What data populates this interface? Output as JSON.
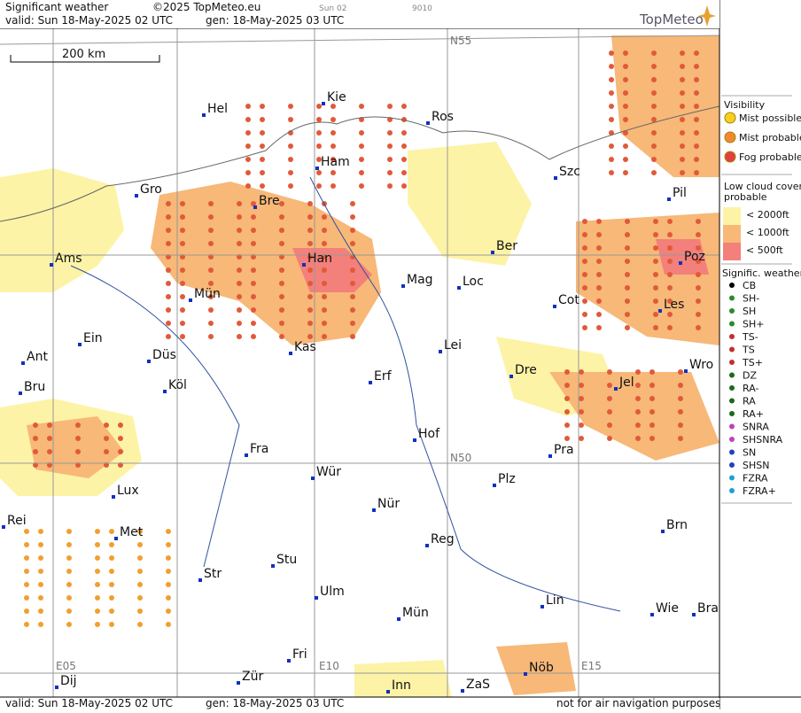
{
  "header": {
    "title": "Significant weather",
    "copyright": "©2025 TopMeteo.eu",
    "run": "Sun 02",
    "code": "9010",
    "valid": "valid:  Sun  18-May-2025  02 UTC",
    "gen": "gen: 18-May-2025 03 UTC",
    "logo": "TopMeteo"
  },
  "scale": "200 km",
  "grid_labels": [
    "N55",
    "N50",
    "E05",
    "E10",
    "E15"
  ],
  "cities": [
    "Hel",
    "Kie",
    "Ros",
    "Ham",
    "Szc",
    "Gro",
    "Bre",
    "Pil",
    "Ber",
    "Ams",
    "Han",
    "Poz",
    "Mag",
    "Loc",
    "Mün",
    "Cot",
    "Les",
    "Ein",
    "Kas",
    "Lei",
    "Ant",
    "Düs",
    "Wro",
    "Dre",
    "Erf",
    "Jel",
    "Bru",
    "Köl",
    "Hof",
    "Fra",
    "Pra",
    "Wür",
    "Plz",
    "Lux",
    "Nür",
    "Rei",
    "Brn",
    "Met",
    "Reg",
    "Stu",
    "Str",
    "Ulm",
    "Lin",
    "Wie",
    "Bra",
    "Mün",
    "Fri",
    "Nöb",
    "Dij",
    "Zür",
    "Inn",
    "ZaS"
  ],
  "legend": {
    "visibility": "Visibility",
    "visibility_items": [
      "Mist possible",
      "Mist probable",
      "Fog probable"
    ],
    "cloud_title": [
      "Low cloud cover",
      "probable"
    ],
    "cloud_items": [
      "< 2000ft",
      "< 1000ft",
      "<   500ft"
    ],
    "weather_title": "Signific. weather",
    "weather_items": [
      "CB",
      "SH-",
      "SH",
      "SH+",
      "TS-",
      "TS",
      "TS+",
      "DZ",
      "RA-",
      "RA",
      "RA+",
      "SNRA",
      "SHSNRA",
      "SN",
      "SHSN",
      "FZRA",
      "FZRA+"
    ]
  },
  "footer": {
    "valid": "valid:  Sun  18-May-2025  02 UTC",
    "gen": "gen: 18-May-2025 03 UTC",
    "note": "not for air navigation purposes"
  }
}
